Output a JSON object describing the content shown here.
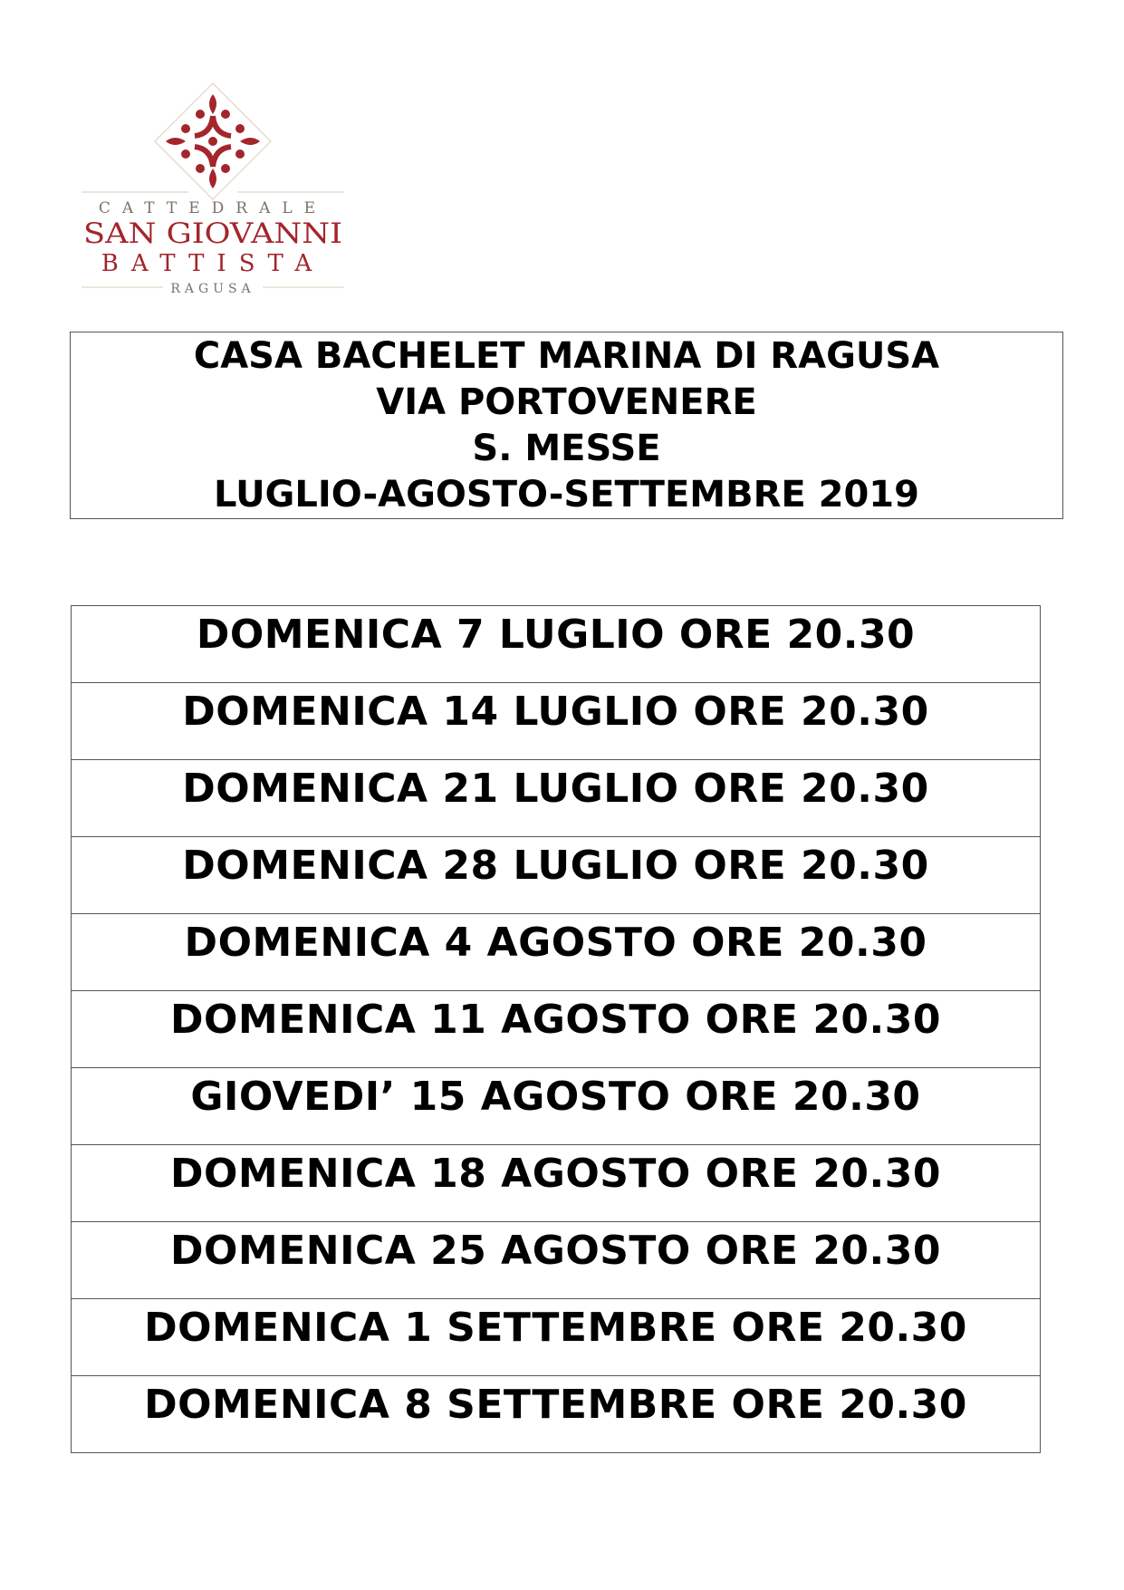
{
  "logo": {
    "line1": "CATTEDRALE",
    "line2": "SAN GIOVANNI",
    "line3": "BATTISTA",
    "line4": "RAGUSA",
    "brand_color": "#a3262c",
    "secondary_color": "#7a7268"
  },
  "header": {
    "lines": [
      "CASA BACHELET MARINA DI RAGUSA",
      "VIA PORTOVENERE",
      "S. MESSE",
      "LUGLIO-AGOSTO-SETTEMBRE 2019"
    ]
  },
  "schedule": [
    "DOMENICA 7 LUGLIO ORE 20.30",
    "DOMENICA 14 LUGLIO ORE 20.30",
    "DOMENICA 21 LUGLIO ORE 20.30",
    "DOMENICA 28 LUGLIO ORE 20.30",
    "DOMENICA 4 AGOSTO ORE 20.30",
    "DOMENICA 11 AGOSTO ORE 20.30",
    "GIOVEDI’ 15 AGOSTO ORE 20.30",
    "DOMENICA 18 AGOSTO ORE 20.30",
    "DOMENICA 25 AGOSTO ORE 20.30",
    "DOMENICA 1 SETTEMBRE ORE 20.30",
    "DOMENICA 8 SETTEMBRE ORE 20.30"
  ]
}
